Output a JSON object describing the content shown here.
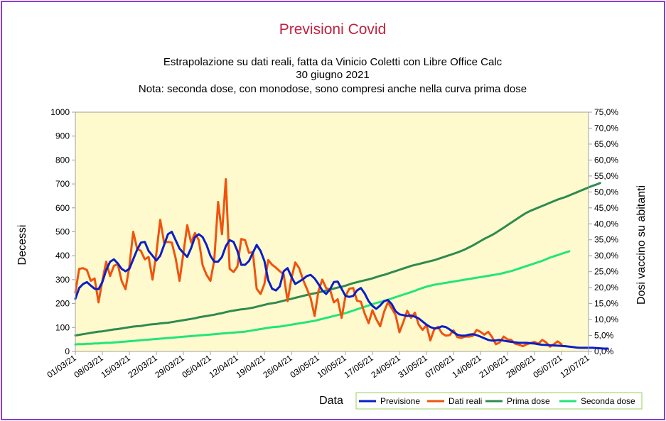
{
  "chart_data": {
    "type": "line",
    "title": "Previsioni Covid",
    "subtitle_lines": [
      "Estrapolazione su dati reali, fatta da Vinicio Coletti con Libre Office Calc",
      "30 giugno 2021",
      "Nota: seconda dose, con monodose, sono compresi anche nella curva prima dose"
    ],
    "xlabel": "Data",
    "ylabel": "Decessi",
    "y2label": "Dosi vaccino su abitanti",
    "ylim": [
      0,
      1000
    ],
    "y2lim": [
      0,
      75
    ],
    "yticks": [
      "0",
      "100",
      "200",
      "300",
      "400",
      "500",
      "600",
      "700",
      "800",
      "900",
      "1000"
    ],
    "y2ticks": [
      "0,0%",
      "5,0%",
      "10,0%",
      "15,0%",
      "20,0%",
      "25,0%",
      "30,0%",
      "35,0%",
      "40,0%",
      "45,0%",
      "50,0%",
      "55,0%",
      "60,0%",
      "65,0%",
      "70,0%",
      "75,0%"
    ],
    "xticks": [
      "01/03/21",
      "08/03/21",
      "15/03/21",
      "22/03/21",
      "29/03/21",
      "05/04/21",
      "12/04/21",
      "19/04/21",
      "26/04/21",
      "03/05/21",
      "10/05/21",
      "17/05/21",
      "24/05/21",
      "31/05/21",
      "07/06/21",
      "14/06/21",
      "21/06/21",
      "28/06/21",
      "05/07/21",
      "12/07/21"
    ],
    "x_start": "01/03/21",
    "grid": false,
    "legend_position": "bottom-right",
    "series": [
      {
        "name": "Previsione",
        "axis": "left",
        "color": "#0a1fc4",
        "values": [
          220,
          265,
          282,
          290,
          275,
          262,
          260,
          290,
          340,
          375,
          385,
          368,
          345,
          335,
          345,
          385,
          425,
          455,
          458,
          420,
          400,
          380,
          400,
          445,
          490,
          500,
          465,
          430,
          412,
          395,
          432,
          478,
          490,
          478,
          445,
          400,
          375,
          375,
          395,
          440,
          465,
          458,
          420,
          362,
          362,
          378,
          412,
          445,
          420,
          378,
          298,
          262,
          255,
          272,
          335,
          348,
          312,
          282,
          292,
          302,
          315,
          320,
          305,
          282,
          255,
          240,
          260,
          290,
          292,
          262,
          232,
          228,
          232,
          255,
          265,
          242,
          210,
          190,
          178,
          192,
          210,
          215,
          198,
          168,
          155,
          152,
          148,
          150,
          145,
          138,
          125,
          112,
          102,
          96,
          98,
          105,
          102,
          92,
          80,
          70,
          66,
          66,
          70,
          72,
          68,
          62,
          55,
          48,
          45,
          46,
          48,
          45,
          42,
          40,
          38,
          36,
          36,
          36,
          34,
          33,
          30,
          28,
          27,
          26,
          25,
          24,
          23,
          22,
          20,
          18,
          16,
          15,
          15,
          15,
          15,
          14,
          13,
          12,
          12
        ]
      },
      {
        "name": "Dati reali",
        "axis": "left",
        "color": "#f0530e",
        "values": [
          246,
          345,
          348,
          340,
          295,
          305,
          205,
          295,
          375,
          315,
          358,
          365,
          295,
          260,
          355,
          500,
          430,
          420,
          385,
          395,
          300,
          410,
          550,
          455,
          458,
          455,
          390,
          295,
          410,
          528,
          455,
          495,
          465,
          360,
          320,
          295,
          380,
          625,
          490,
          720,
          345,
          332,
          355,
          470,
          465,
          412,
          415,
          262,
          240,
          282,
          382,
          362,
          350,
          335,
          322,
          210,
          305,
          372,
          348,
          300,
          262,
          222,
          148,
          252,
          300,
          265,
          258,
          205,
          218,
          140,
          230,
          262,
          265,
          212,
          208,
          158,
          118,
          172,
          135,
          105,
          165,
          205,
          180,
          152,
          80,
          122,
          170,
          140,
          162,
          112,
          90,
          110,
          46,
          92,
          103,
          76,
          66,
          68,
          88,
          60,
          56,
          62,
          62,
          65,
          90,
          82,
          70,
          82,
          60,
          30,
          38,
          62,
          50,
          48,
          32,
          28,
          22,
          30,
          35,
          40,
          32,
          48,
          38,
          20,
          30,
          42,
          30
        ]
      },
      {
        "name": "Prima dose",
        "axis": "right",
        "color": "#2e8b4f",
        "values": [
          5.0,
          5.2,
          5.4,
          5.6,
          5.8,
          6.0,
          6.2,
          6.3,
          6.5,
          6.7,
          6.9,
          7.0,
          7.2,
          7.4,
          7.6,
          7.8,
          7.9,
          8.0,
          8.2,
          8.4,
          8.5,
          8.6,
          8.8,
          8.9,
          9.0,
          9.2,
          9.4,
          9.6,
          9.8,
          10.0,
          10.2,
          10.4,
          10.7,
          10.9,
          11.1,
          11.3,
          11.5,
          11.8,
          12.0,
          12.3,
          12.6,
          12.8,
          13.0,
          13.2,
          13.3,
          13.5,
          13.7,
          14.0,
          14.3,
          14.6,
          14.9,
          15.1,
          15.3,
          15.6,
          15.9,
          16.2,
          16.5,
          16.8,
          17.1,
          17.4,
          17.7,
          18.0,
          18.2,
          18.5,
          18.8,
          19.1,
          19.4,
          19.7,
          20.0,
          20.3,
          20.6,
          21.0,
          21.4,
          21.7,
          22.0,
          22.3,
          22.6,
          22.9,
          23.3,
          23.7,
          24.0,
          24.4,
          24.8,
          25.2,
          25.6,
          26.0,
          26.4,
          26.8,
          27.1,
          27.4,
          27.7,
          28.0,
          28.3,
          28.6,
          29.0,
          29.4,
          29.8,
          30.2,
          30.6,
          31.0,
          31.5,
          32.0,
          32.6,
          33.2,
          33.9,
          34.6,
          35.3,
          35.9,
          36.5,
          37.2,
          38.0,
          38.8,
          39.6,
          40.4,
          41.2,
          42.0,
          42.8,
          43.5,
          44.1,
          44.6,
          45.1,
          45.6,
          46.1,
          46.6,
          47.1,
          47.6,
          48.0,
          48.4,
          48.9,
          49.4,
          49.9,
          50.4,
          50.9,
          51.4,
          51.9,
          52.3,
          52.8
        ]
      },
      {
        "name": "Seconda dose",
        "axis": "right",
        "color": "#22e57a",
        "values": [
          2.2,
          2.3,
          2.3,
          2.4,
          2.4,
          2.5,
          2.5,
          2.6,
          2.7,
          2.7,
          2.8,
          2.9,
          3.0,
          3.1,
          3.2,
          3.3,
          3.4,
          3.5,
          3.6,
          3.7,
          3.8,
          3.9,
          4.0,
          4.1,
          4.2,
          4.3,
          4.4,
          4.5,
          4.6,
          4.7,
          4.8,
          4.9,
          5.0,
          5.1,
          5.2,
          5.3,
          5.4,
          5.5,
          5.6,
          5.7,
          5.8,
          5.9,
          6.0,
          6.1,
          6.2,
          6.4,
          6.6,
          6.8,
          7.0,
          7.2,
          7.4,
          7.6,
          7.7,
          7.8,
          8.0,
          8.2,
          8.4,
          8.6,
          8.8,
          9.0,
          9.2,
          9.4,
          9.6,
          9.9,
          10.2,
          10.5,
          10.8,
          11.1,
          11.4,
          11.7,
          12.0,
          12.4,
          12.8,
          13.2,
          13.6,
          14.0,
          14.4,
          14.8,
          15.2,
          15.5,
          15.8,
          16.2,
          16.6,
          17.0,
          17.4,
          17.8,
          18.2,
          18.6,
          19.0,
          19.5,
          19.9,
          20.3,
          20.6,
          20.9,
          21.1,
          21.3,
          21.5,
          21.7,
          21.9,
          22.1,
          22.3,
          22.5,
          22.7,
          22.9,
          23.1,
          23.3,
          23.5,
          23.7,
          23.9,
          24.1,
          24.3,
          24.6,
          24.9,
          25.2,
          25.6,
          26.0,
          26.4,
          26.8,
          27.2,
          27.6,
          28.0,
          28.4,
          28.9,
          29.4,
          29.8,
          30.2,
          30.6,
          31.0,
          31.4
        ]
      }
    ]
  }
}
